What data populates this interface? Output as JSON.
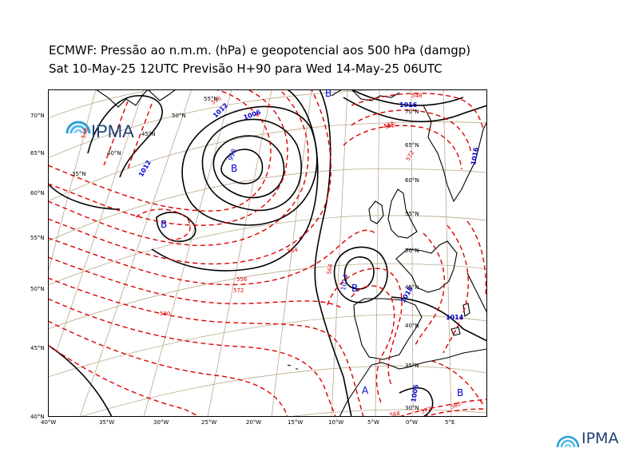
{
  "title_line1": "ECMWF:  Pressão ao n.m.m. (hPa) e geopotencial aos 500 hPa (damgp)",
  "title_line2": "Sat 10-May-25 12UTC Previsão H+90 para Wed 14-May-25 06UTC",
  "brand": "IPMA",
  "colors": {
    "isobar": "#000000",
    "geopotential": "#dd0000",
    "pressure_label": "#0000cc",
    "grid": "#b8a88a",
    "frame": "#000000"
  },
  "bottom_lon_labels": [
    "40°W",
    "35°W",
    "30°W",
    "25°W",
    "20°W",
    "15°W",
    "10°W",
    "5°W",
    "0°W",
    "5°E"
  ],
  "left_lat_labels": [
    "70°N",
    "65°N",
    "60°N",
    "55°N",
    "50°N",
    "45°N",
    "40°N"
  ],
  "inner_labels": [
    "55°N",
    "50°N",
    "45°N",
    "40°N",
    "35°N",
    "65°N",
    "60°N",
    "55°N",
    "50°N",
    "45°N",
    "40°N",
    "35°N",
    "30°N",
    "70°N"
  ],
  "pressure_centers": [
    {
      "symbol": "B",
      "value": "998"
    },
    {
      "symbol": "B",
      "value": ""
    },
    {
      "symbol": "B",
      "value": "1014"
    },
    {
      "symbol": "A",
      "value": ""
    },
    {
      "symbol": "B",
      "value": ""
    },
    {
      "symbol": "B",
      "value": ""
    }
  ],
  "isobar_labels": [
    "1006",
    "1012",
    "1012",
    "1016",
    "1014",
    "1018",
    "1006",
    "1016"
  ],
  "geopotential_labels": [
    "548",
    "556",
    "564",
    "572",
    "580",
    "556",
    "564",
    "548",
    "556",
    "564",
    "572",
    "568",
    "572",
    "580"
  ]
}
